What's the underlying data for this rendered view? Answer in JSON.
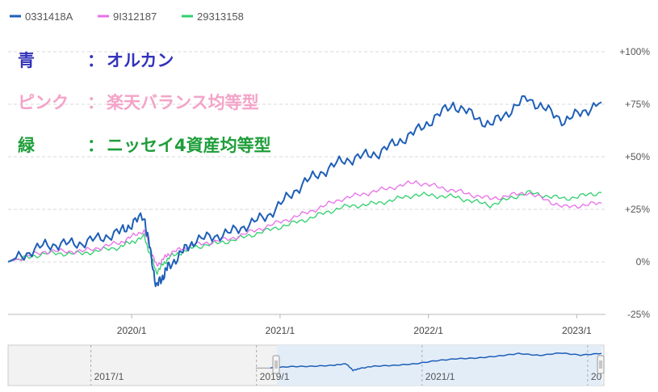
{
  "legend": [
    {
      "code": "0331418A",
      "color": "#1f5fb8"
    },
    {
      "code": "9I312187",
      "color": "#e86fe8"
    },
    {
      "code": "29313158",
      "color": "#2fd06e"
    }
  ],
  "annotations": [
    {
      "label": "青",
      "sep": "：",
      "text": "オルカン",
      "color": "#3333bb"
    },
    {
      "label": "ピンク",
      "sep": "：",
      "text": "楽天バランス均等型",
      "color": "#f4a3c8"
    },
    {
      "label": "緑",
      "sep": "：",
      "text": "ニッセイ4資産均等型",
      "color": "#1e9e3a"
    }
  ],
  "chart_data": {
    "type": "line",
    "x_unit": "date",
    "x_range": [
      "2019-03",
      "2023-03"
    ],
    "ylim": [
      -25,
      100
    ],
    "y_ticks": [
      "+100%",
      "+75%",
      "+50%",
      "+25%",
      "0%",
      "-25%"
    ],
    "y_tick_values": [
      100,
      75,
      50,
      25,
      0,
      -25
    ],
    "x_tick_labels": [
      "2020/1",
      "2021/1",
      "2022/1",
      "2023/1"
    ],
    "x_tick_dates": [
      "2020-01",
      "2021-01",
      "2022-01",
      "2023-01"
    ],
    "grid": "horizontal-dashed",
    "series": [
      {
        "name": "0331418A",
        "color": "#1f5fb8",
        "x": [
          "2019-03",
          "2019-06",
          "2019-09",
          "2019-12",
          "2020-02",
          "2020-03",
          "2020-04",
          "2020-06",
          "2020-09",
          "2020-12",
          "2021-03",
          "2021-06",
          "2021-09",
          "2021-12",
          "2022-03",
          "2022-06",
          "2022-09",
          "2022-12",
          "2023-03"
        ],
        "y": [
          0,
          8,
          9,
          14,
          22,
          -12,
          -2,
          10,
          14,
          22,
          38,
          48,
          52,
          62,
          75,
          65,
          78,
          67,
          76
        ]
      },
      {
        "name": "9I312187",
        "color": "#e86fe8",
        "x": [
          "2019-03",
          "2019-06",
          "2019-09",
          "2019-12",
          "2020-02",
          "2020-03",
          "2020-04",
          "2020-06",
          "2020-09",
          "2020-12",
          "2021-03",
          "2021-06",
          "2021-09",
          "2021-12",
          "2022-03",
          "2022-06",
          "2022-09",
          "2022-12",
          "2023-03"
        ],
        "y": [
          0,
          5,
          5,
          9,
          15,
          -2,
          4,
          8,
          11,
          17,
          23,
          30,
          34,
          38,
          34,
          30,
          33,
          26,
          28
        ]
      },
      {
        "name": "29313158",
        "color": "#2fd06e",
        "x": [
          "2019-03",
          "2019-06",
          "2019-09",
          "2019-12",
          "2020-02",
          "2020-03",
          "2020-04",
          "2020-06",
          "2020-09",
          "2020-12",
          "2021-03",
          "2021-06",
          "2021-09",
          "2021-12",
          "2022-03",
          "2022-06",
          "2022-09",
          "2022-12",
          "2023-03"
        ],
        "y": [
          0,
          4,
          4,
          7,
          12,
          -5,
          2,
          7,
          10,
          15,
          20,
          26,
          28,
          32,
          31,
          27,
          33,
          30,
          33
        ]
      }
    ]
  },
  "navigator": {
    "labels": [
      "2017/1",
      "2019/1",
      "2021/1",
      "20"
    ],
    "label_dates": [
      "2017-01",
      "2019-01",
      "2021-01",
      "2023-01"
    ],
    "x_range": [
      "2016-01",
      "2023-03"
    ],
    "selection": [
      "2019-03",
      "2023-03"
    ]
  }
}
